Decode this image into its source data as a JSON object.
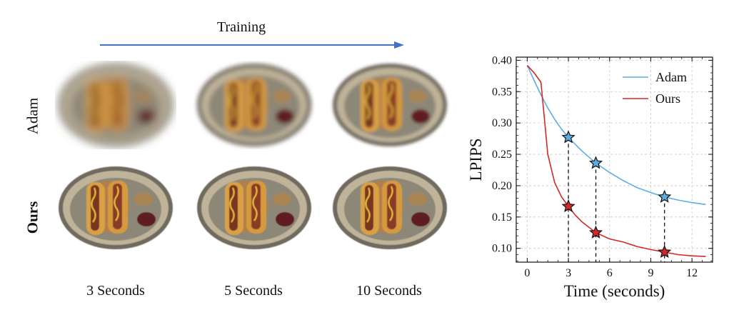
{
  "figure": {
    "training_label": "Training",
    "row_labels": [
      "Adam",
      "Ours"
    ],
    "column_labels": [
      "3 Seconds",
      "5 Seconds",
      "10 Seconds"
    ]
  },
  "colors": {
    "adam": "#5aaee3",
    "ours": "#d62728",
    "arrow": "#4472c4"
  },
  "icons": [
    "star-marker-icon",
    "arrow-right-icon",
    "food-plate-image"
  ],
  "chart_data": {
    "type": "line",
    "xlabel": "Time (seconds)",
    "ylabel": "LPIPS",
    "xlim": [
      -0.8,
      13.5
    ],
    "ylim": [
      0.078,
      0.405
    ],
    "xticks": [
      0,
      3,
      6,
      9,
      12
    ],
    "yticks": [
      0.1,
      0.15,
      0.2,
      0.25,
      0.3,
      0.35,
      0.4
    ],
    "ytick_labels": [
      "0.10",
      "0.15",
      "0.20",
      "0.25",
      "0.30",
      "0.35",
      "0.40"
    ],
    "grid": true,
    "legend_position": "top-right",
    "series": [
      {
        "name": "Adam",
        "x": [
          0,
          0.5,
          1,
          1.5,
          2,
          2.5,
          3,
          4,
          5,
          6,
          7,
          8,
          9,
          10,
          11,
          12,
          13
        ],
        "y": [
          0.392,
          0.368,
          0.345,
          0.324,
          0.306,
          0.29,
          0.277,
          0.255,
          0.236,
          0.221,
          0.208,
          0.197,
          0.189,
          0.182,
          0.177,
          0.173,
          0.17
        ]
      },
      {
        "name": "Ours",
        "x": [
          0,
          0.5,
          1,
          1.5,
          2,
          2.5,
          3,
          3.5,
          4,
          5,
          6,
          7,
          8,
          9,
          10,
          11,
          12,
          13
        ],
        "y": [
          0.392,
          0.38,
          0.365,
          0.25,
          0.205,
          0.182,
          0.167,
          0.153,
          0.142,
          0.125,
          0.115,
          0.11,
          0.103,
          0.098,
          0.094,
          0.09,
          0.088,
          0.087
        ]
      }
    ],
    "markers": [
      {
        "series": "Adam",
        "x": 3,
        "y": 0.277
      },
      {
        "series": "Adam",
        "x": 5,
        "y": 0.236
      },
      {
        "series": "Adam",
        "x": 10,
        "y": 0.182
      },
      {
        "series": "Ours",
        "x": 3,
        "y": 0.167
      },
      {
        "series": "Ours",
        "x": 5,
        "y": 0.125
      },
      {
        "series": "Ours",
        "x": 10,
        "y": 0.094
      }
    ]
  }
}
